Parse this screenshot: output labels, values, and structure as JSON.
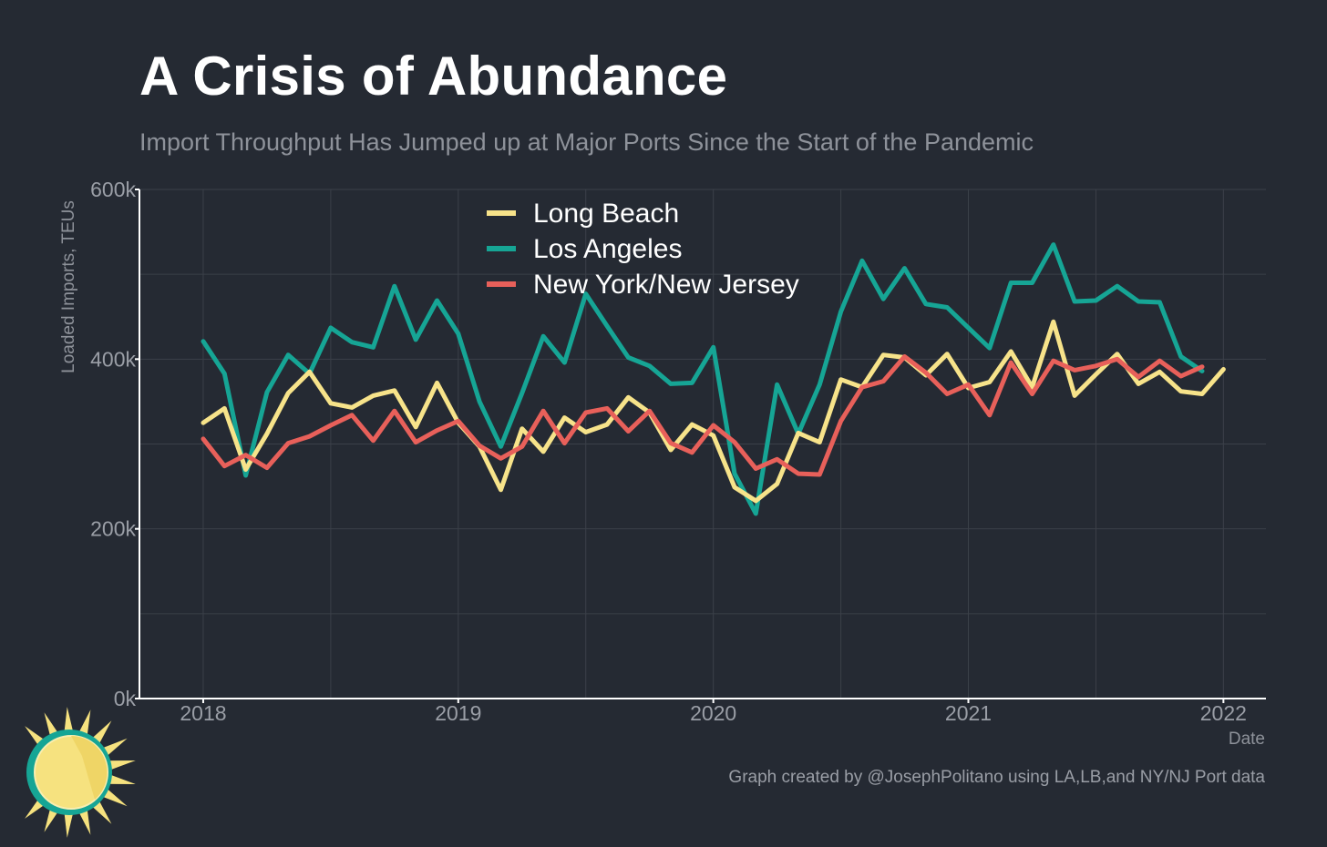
{
  "header": {
    "title": "A Crisis of Abundance",
    "subtitle": "Import Throughput Has Jumped up at Major Ports Since the Start of the Pandemic"
  },
  "caption": "Graph created by @JosephPolitano using LA,LB,and NY/NJ Port data",
  "colors": {
    "background": "#252a33",
    "grid": "#3b4049",
    "axis": "#ffffff",
    "long_beach": "#f7e38a",
    "los_angeles": "#16a595",
    "ny_nj": "#e8605a",
    "logo_sun": "#f6e27f",
    "logo_ring": "#16a595"
  },
  "logo_icon": "sun-icon",
  "chart_data": {
    "type": "line",
    "xlabel": "Date",
    "ylabel": "Loaded Imports, TEUs",
    "xlim": [
      "2017-10",
      "2022-03"
    ],
    "ylim": [
      0,
      600000
    ],
    "x_ticks": [
      "2018",
      "2019",
      "2020",
      "2021",
      "2022"
    ],
    "y_ticks": [
      {
        "value": 0,
        "label": "0k"
      },
      {
        "value": 200000,
        "label": "200k"
      },
      {
        "value": 400000,
        "label": "400k"
      },
      {
        "value": 600000,
        "label": "600k"
      }
    ],
    "grid": true,
    "legend_position": "top-center",
    "series": [
      {
        "name": "Long Beach",
        "color": "#f7e38a",
        "x": [
          "2018-01",
          "2018-02",
          "2018-03",
          "2018-04",
          "2018-05",
          "2018-06",
          "2018-07",
          "2018-08",
          "2018-09",
          "2018-10",
          "2018-11",
          "2018-12",
          "2019-01",
          "2019-02",
          "2019-03",
          "2019-04",
          "2019-05",
          "2019-06",
          "2019-07",
          "2019-08",
          "2019-09",
          "2019-10",
          "2019-11",
          "2019-12",
          "2020-01",
          "2020-02",
          "2020-03",
          "2020-04",
          "2020-05",
          "2020-06",
          "2020-07",
          "2020-08",
          "2020-09",
          "2020-10",
          "2020-11",
          "2020-12",
          "2021-01",
          "2021-02",
          "2021-03",
          "2021-04",
          "2021-05",
          "2021-06",
          "2021-07",
          "2021-08",
          "2021-09",
          "2021-10",
          "2021-11",
          "2021-12",
          "2022-01"
        ],
        "values": [
          325000,
          342000,
          270000,
          312000,
          360000,
          385000,
          348000,
          343000,
          357000,
          363000,
          320000,
          372000,
          325000,
          297000,
          246000,
          318000,
          291000,
          331000,
          314000,
          323000,
          355000,
          337000,
          293000,
          323000,
          310000,
          249000,
          233000,
          253000,
          313000,
          302000,
          376000,
          367000,
          405000,
          402000,
          381000,
          406000,
          366000,
          373000,
          409000,
          367000,
          444000,
          357000,
          382000,
          406000,
          371000,
          385000,
          362000,
          359000,
          388000
        ]
      },
      {
        "name": "Los Angeles",
        "color": "#16a595",
        "x": [
          "2018-01",
          "2018-02",
          "2018-03",
          "2018-04",
          "2018-05",
          "2018-06",
          "2018-07",
          "2018-08",
          "2018-09",
          "2018-10",
          "2018-11",
          "2018-12",
          "2019-01",
          "2019-02",
          "2019-03",
          "2019-04",
          "2019-05",
          "2019-06",
          "2019-07",
          "2019-08",
          "2019-09",
          "2019-10",
          "2019-11",
          "2019-12",
          "2020-01",
          "2020-02",
          "2020-03",
          "2020-04",
          "2020-05",
          "2020-06",
          "2020-07",
          "2020-08",
          "2020-09",
          "2020-10",
          "2020-11",
          "2020-12",
          "2021-01",
          "2021-02",
          "2021-03",
          "2021-04",
          "2021-05",
          "2021-06",
          "2021-07",
          "2021-08",
          "2021-09",
          "2021-10",
          "2021-11",
          "2021-12"
        ],
        "values": [
          421000,
          383000,
          263000,
          361000,
          405000,
          383000,
          437000,
          420000,
          414000,
          486000,
          423000,
          469000,
          430000,
          350000,
          297000,
          360000,
          427000,
          396000,
          477000,
          439000,
          402000,
          392000,
          371000,
          372000,
          414000,
          265000,
          218000,
          370000,
          312000,
          370000,
          456000,
          516000,
          471000,
          507000,
          465000,
          461000,
          437000,
          413000,
          490000,
          490000,
          535000,
          468000,
          469000,
          486000,
          468000,
          467000,
          403000,
          386000
        ]
      },
      {
        "name": "New York/New Jersey",
        "color": "#e8605a",
        "x": [
          "2018-01",
          "2018-02",
          "2018-03",
          "2018-04",
          "2018-05",
          "2018-06",
          "2018-07",
          "2018-08",
          "2018-09",
          "2018-10",
          "2018-11",
          "2018-12",
          "2019-01",
          "2019-02",
          "2019-03",
          "2019-04",
          "2019-05",
          "2019-06",
          "2019-07",
          "2019-08",
          "2019-09",
          "2019-10",
          "2019-11",
          "2019-12",
          "2020-01",
          "2020-02",
          "2020-03",
          "2020-04",
          "2020-05",
          "2020-06",
          "2020-07",
          "2020-08",
          "2020-09",
          "2020-10",
          "2020-11",
          "2020-12",
          "2021-01",
          "2021-02",
          "2021-03",
          "2021-04",
          "2021-05",
          "2021-06",
          "2021-07",
          "2021-08",
          "2021-09",
          "2021-10",
          "2021-11",
          "2021-12"
        ],
        "values": [
          306000,
          274000,
          287000,
          272000,
          301000,
          309000,
          322000,
          334000,
          304000,
          339000,
          302000,
          316000,
          327000,
          298000,
          283000,
          297000,
          339000,
          301000,
          337000,
          342000,
          315000,
          339000,
          301000,
          290000,
          322000,
          302000,
          271000,
          282000,
          265000,
          264000,
          327000,
          367000,
          374000,
          403000,
          384000,
          359000,
          370000,
          334000,
          396000,
          359000,
          398000,
          387000,
          392000,
          400000,
          379000,
          398000,
          380000,
          391000
        ]
      }
    ]
  }
}
